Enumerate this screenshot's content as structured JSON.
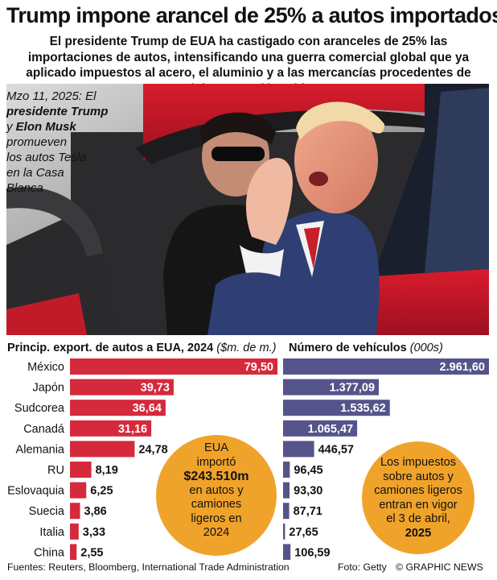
{
  "header": {
    "title": "Trump impone arancel de 25% a autos importados",
    "subtitle": "El presidente Trump de EUA ha castigado con aranceles de 25% las importaciones de autos, intensificando una guerra comercial global que ya aplicado impuestos al acero, el aluminio y a las mercancías procedentes de México, Canadá y China"
  },
  "photo_caption": {
    "date": "Mzo 11, 2025: El",
    "person1": "presidente Trump",
    "joiner": "y",
    "person2": "Elon Musk",
    "rest1": "promueven",
    "rest2": "los autos Tesla",
    "rest3": "en la Casa",
    "rest4": "Blanca"
  },
  "chart_data": [
    {
      "type": "bar",
      "orientation": "horizontal",
      "title": "Princip. export. de autos a EUA, 2024",
      "unit": "($m. de m.)",
      "categories": [
        "México",
        "Japón",
        "Sudcorea",
        "Canadá",
        "Alemania",
        "RU",
        "Eslovaquia",
        "Suecia",
        "Italia",
        "China"
      ],
      "values": [
        79.5,
        39.73,
        36.64,
        31.16,
        24.78,
        8.19,
        6.25,
        3.86,
        3.33,
        2.55
      ],
      "value_labels": [
        "79,50",
        "39,73",
        "36,64",
        "31,16",
        "24,78",
        "8,19",
        "6,25",
        "3,86",
        "3,33",
        "2,55"
      ],
      "color": "#d42a3c"
    },
    {
      "type": "bar",
      "orientation": "horizontal",
      "title": "Número de vehículos",
      "unit": "(000s)",
      "categories": [
        "México",
        "Japón",
        "Sudcorea",
        "Canadá",
        "Alemania",
        "RU",
        "Eslovaquia",
        "Suecia",
        "Italia",
        "China"
      ],
      "values": [
        2961.6,
        1377.09,
        1535.62,
        1065.47,
        446.57,
        96.45,
        93.3,
        87.71,
        27.65,
        106.59
      ],
      "value_labels": [
        "2.961,60",
        "1.377,09",
        "1.535,62",
        "1.065,47",
        "446,57",
        "96,45",
        "93,30",
        "87,71",
        "27,65",
        "106,59"
      ],
      "color": "#55548a"
    }
  ],
  "callouts": {
    "left": {
      "line1": "EUA",
      "line2": "importó",
      "amount": "$243.510m",
      "line3": "en autos y",
      "line4": "camiones",
      "line5": "ligeros en",
      "line6": "2024"
    },
    "right": {
      "line1": "Los impuestos",
      "line2": "sobre autos y",
      "line3": "camiones ligeros",
      "line4": "entran en vigor",
      "line5": "el 3 de abril,",
      "year": "2025"
    }
  },
  "footer": {
    "sources": "Fuentes: Reuters, Bloomberg, International Trade Administration",
    "photo_credit": "Foto: Getty",
    "brand": "© GRAPHIC NEWS"
  },
  "colors": {
    "export_bar": "#d42a3c",
    "vehicle_bar": "#55548a",
    "callout": "#f0a32a"
  }
}
